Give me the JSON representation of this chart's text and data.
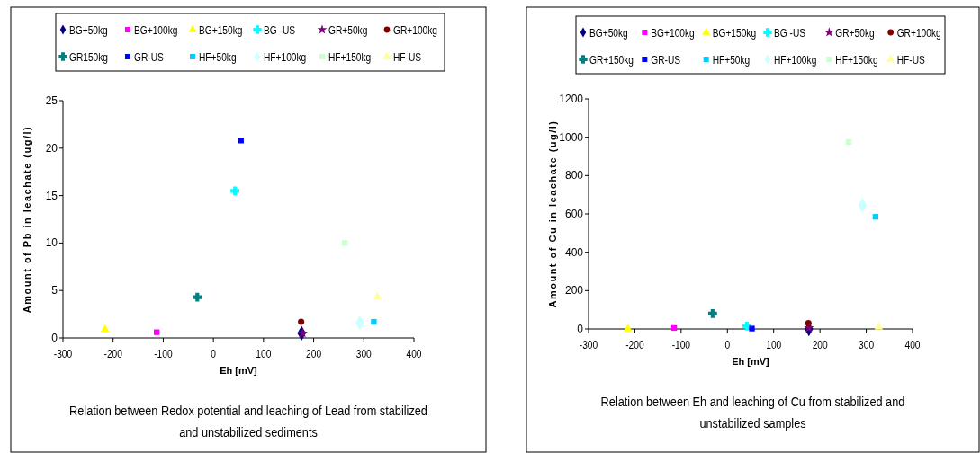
{
  "chart_data": [
    {
      "type": "scatter",
      "title": "Relation between Redox potential and leaching of Lead from stabilized and unstabilized sediments",
      "xlabel": "Eh [mV]",
      "ylabel": "Amount of Pb in leachate (ug/l)",
      "xlim": [
        -300,
        400
      ],
      "xticks": [
        -300,
        -200,
        -100,
        0,
        100,
        200,
        300,
        400
      ],
      "ylim": [
        0,
        25
      ],
      "yticks": [
        0,
        5,
        10,
        15,
        20,
        25
      ],
      "grid": false,
      "legend": "top",
      "series": [
        {
          "name": "BG+50kg",
          "color": "#000080",
          "marker": "diamond",
          "x": [
            176
          ],
          "values": [
            0.5
          ]
        },
        {
          "name": "BG+100kg",
          "color": "#ff00ff",
          "marker": "square",
          "x": [
            -113
          ],
          "values": [
            0.6
          ]
        },
        {
          "name": "BG+150kg",
          "color": "#ffff00",
          "marker": "triangle",
          "x": [
            -216
          ],
          "values": [
            0.9
          ]
        },
        {
          "name": "BG -US",
          "color": "#00ffff",
          "marker": "cross",
          "x": [
            43
          ],
          "values": [
            15.5
          ]
        },
        {
          "name": "GR+50kg",
          "color": "#800080",
          "marker": "star",
          "x": [
            178
          ],
          "values": [
            0.5
          ]
        },
        {
          "name": "GR+100kg",
          "color": "#800000",
          "marker": "circle",
          "x": [
            175
          ],
          "values": [
            1.7
          ]
        },
        {
          "name": "GR150kg",
          "color": "#008080",
          "marker": "cross",
          "x": [
            -32
          ],
          "values": [
            4.3
          ]
        },
        {
          "name": "GR-US",
          "color": "#0000ff",
          "marker": "square",
          "x": [
            55
          ],
          "values": [
            20.8
          ]
        },
        {
          "name": "HF+50kg",
          "color": "#00ccff",
          "marker": "square",
          "x": [
            320
          ],
          "values": [
            1.7
          ]
        },
        {
          "name": "HF+100kg",
          "color": "#ccffff",
          "marker": "diamond",
          "x": [
            292
          ],
          "values": [
            1.6
          ]
        },
        {
          "name": "HF+150kg",
          "color": "#ccffcc",
          "marker": "square",
          "x": [
            262
          ],
          "values": [
            10
          ]
        },
        {
          "name": "HF-US",
          "color": "#ffff99",
          "marker": "triangle",
          "x": [
            327
          ],
          "values": [
            4.3
          ]
        }
      ]
    },
    {
      "type": "scatter",
      "title": "Relation between Eh and leaching of Cu from stabilized and unstabilized samples",
      "xlabel": "Eh [mV]",
      "ylabel": "Amount of Cu in leachate (ug/l)",
      "xlim": [
        -300,
        400
      ],
      "xticks": [
        -300,
        -200,
        -100,
        0,
        100,
        200,
        300,
        400
      ],
      "ylim": [
        0,
        1200
      ],
      "yticks": [
        0,
        200,
        400,
        600,
        800,
        1000,
        1200
      ],
      "grid": false,
      "legend": "top",
      "series": [
        {
          "name": "BG+50kg",
          "color": "#000080",
          "marker": "diamond",
          "x": [
            176
          ],
          "values": [
            0
          ]
        },
        {
          "name": "BG+100kg",
          "color": "#ff00ff",
          "marker": "square",
          "x": [
            -115
          ],
          "values": [
            5
          ]
        },
        {
          "name": "BG+150kg",
          "color": "#ffff00",
          "marker": "triangle",
          "x": [
            -215
          ],
          "values": [
            0
          ]
        },
        {
          "name": "BG -US",
          "color": "#00ffff",
          "marker": "cross",
          "x": [
            42
          ],
          "values": [
            15
          ]
        },
        {
          "name": "GR+50kg",
          "color": "#800080",
          "marker": "star",
          "x": [
            176
          ],
          "values": [
            5
          ]
        },
        {
          "name": "GR+100kg",
          "color": "#800000",
          "marker": "circle",
          "x": [
            175
          ],
          "values": [
            30
          ]
        },
        {
          "name": "GR+150kg",
          "color": "#008080",
          "marker": "cross",
          "x": [
            -32
          ],
          "values": [
            80
          ]
        },
        {
          "name": "GR-US",
          "color": "#0000ff",
          "marker": "square",
          "x": [
            53
          ],
          "values": [
            2
          ]
        },
        {
          "name": "HF+50kg",
          "color": "#00ccff",
          "marker": "square",
          "x": [
            320
          ],
          "values": [
            585
          ]
        },
        {
          "name": "HF+100kg",
          "color": "#ccffff",
          "marker": "diamond",
          "x": [
            292
          ],
          "values": [
            645
          ]
        },
        {
          "name": "HF+150kg",
          "color": "#ccffcc",
          "marker": "square",
          "x": [
            262
          ],
          "values": [
            975
          ]
        },
        {
          "name": "HF-US",
          "color": "#ffff99",
          "marker": "triangle",
          "x": [
            327
          ],
          "values": [
            10
          ]
        }
      ]
    }
  ]
}
